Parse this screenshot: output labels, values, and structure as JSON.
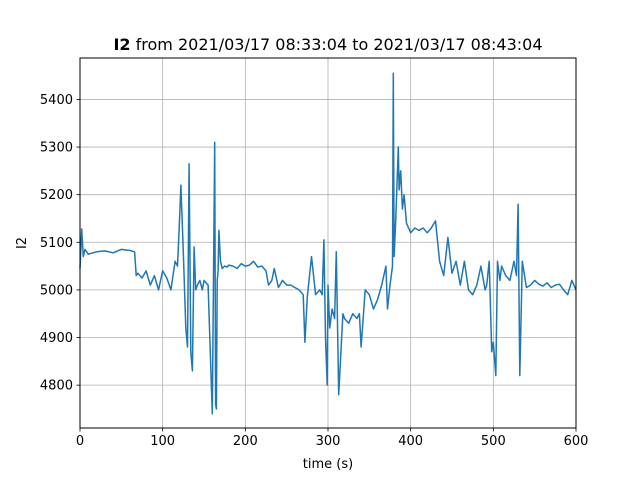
{
  "chart_data": {
    "type": "line",
    "title": {
      "bold": "I2",
      "rest": " from 2021/03/17 08:33:04 to 2021/03/17 08:43:04"
    },
    "xlabel": "time (s)",
    "ylabel": "I2",
    "xlim": [
      0,
      600
    ],
    "ylim": [
      4710,
      5487
    ],
    "xticks": [
      0,
      100,
      200,
      300,
      400,
      500,
      600
    ],
    "yticks": [
      4800,
      4900,
      5000,
      5100,
      5200,
      5300,
      5400
    ],
    "grid": true,
    "legend": "none",
    "series_color": "#1f77b4",
    "series": [
      {
        "x": [
          0,
          2,
          4,
          6,
          10,
          20,
          30,
          40,
          50,
          60,
          66,
          68,
          70,
          75,
          80,
          85,
          90,
          95,
          100,
          105,
          110,
          115,
          118,
          120,
          122,
          125,
          128,
          130,
          132,
          134,
          136,
          138,
          140,
          142,
          145,
          148,
          150,
          155,
          160,
          163,
          164,
          165,
          166,
          167,
          168,
          170,
          172,
          175,
          178,
          180,
          185,
          190,
          195,
          200,
          205,
          210,
          215,
          220,
          225,
          228,
          232,
          235,
          240,
          245,
          250,
          255,
          260,
          265,
          270,
          272,
          275,
          280,
          285,
          290,
          293,
          295,
          297,
          299,
          300,
          302,
          305,
          308,
          310,
          313,
          318,
          320,
          325,
          330,
          335,
          338,
          340,
          345,
          350,
          355,
          360,
          365,
          370,
          372,
          375,
          378,
          379,
          380,
          382,
          385,
          386,
          388,
          390,
          392,
          395,
          400,
          405,
          410,
          415,
          420,
          425,
          430,
          435,
          440,
          445,
          450,
          455,
          460,
          465,
          470,
          475,
          480,
          485,
          490,
          492,
          495,
          498,
          500,
          503,
          505,
          508,
          510,
          515,
          520,
          525,
          528,
          530,
          532,
          535,
          540,
          545,
          550,
          555,
          560,
          565,
          570,
          575,
          580,
          585,
          590,
          595,
          600
        ],
        "y": [
          5045,
          5128,
          5070,
          5085,
          5075,
          5080,
          5082,
          5078,
          5085,
          5083,
          5080,
          5030,
          5035,
          5025,
          5040,
          5010,
          5030,
          5000,
          5040,
          5025,
          5000,
          5060,
          5050,
          5130,
          5220,
          5080,
          4920,
          4880,
          5265,
          4870,
          4830,
          5090,
          5000,
          5010,
          5020,
          5000,
          5020,
          5010,
          4740,
          5310,
          4760,
          4750,
          5020,
          5040,
          5125,
          5060,
          5045,
          5050,
          5048,
          5052,
          5050,
          5045,
          5055,
          5050,
          5052,
          5060,
          5048,
          5050,
          5040,
          5010,
          5020,
          5045,
          5005,
          5020,
          5010,
          5010,
          5005,
          5000,
          4990,
          4890,
          4985,
          5070,
          4990,
          5000,
          4990,
          5105,
          4900,
          4800,
          5010,
          4920,
          4960,
          4940,
          5080,
          4780,
          4950,
          4940,
          4930,
          4950,
          4940,
          4950,
          4880,
          5000,
          4990,
          4960,
          4980,
          5010,
          5050,
          4960,
          5010,
          5050,
          5455,
          5070,
          5150,
          5300,
          5210,
          5250,
          5170,
          5200,
          5140,
          5120,
          5130,
          5125,
          5130,
          5120,
          5130,
          5145,
          5060,
          5030,
          5110,
          5035,
          5060,
          5010,
          5060,
          5000,
          4990,
          5010,
          5050,
          5000,
          5010,
          5060,
          4870,
          4890,
          4820,
          5060,
          5020,
          5050,
          5030,
          5020,
          5060,
          5030,
          5180,
          4820,
          5060,
          5005,
          5010,
          5020,
          5012,
          5008,
          5015,
          5005,
          5010,
          5012,
          5000,
          4990,
          5020,
          5000
        ]
      }
    ]
  }
}
